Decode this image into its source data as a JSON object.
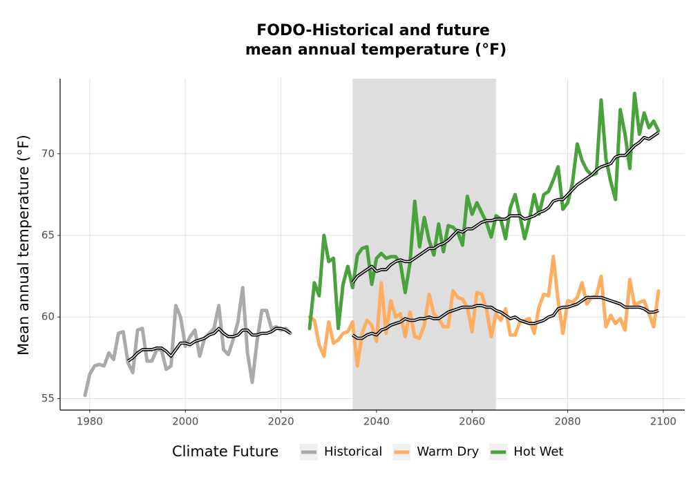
{
  "chart_data": {
    "type": "line",
    "title": [
      "FODO-Historical and future",
      "mean annual temperature (°F)"
    ],
    "y_label": "Mean annual temperature (°F)",
    "legend_title": "Climate Future",
    "legend_position": "bottom",
    "grid": true,
    "xlim": [
      1973.8,
      2104.5
    ],
    "ylim": [
      54.3,
      74.6
    ],
    "xticks": [
      1980,
      2000,
      2020,
      2040,
      2060,
      2080,
      2100
    ],
    "yticks": [
      55,
      60,
      65,
      70
    ],
    "highlight_range": [
      2035,
      2065
    ],
    "highlight_color": "#dcdcdc",
    "series": [
      {
        "name": "Historical",
        "color": "#aaaaaa",
        "x": [
          1979,
          1980,
          1981,
          1982,
          1983,
          1984,
          1985,
          1986,
          1987,
          1988,
          1989,
          1990,
          1991,
          1992,
          1993,
          1994,
          1995,
          1996,
          1997,
          1998,
          1999,
          2000,
          2001,
          2002,
          2003,
          2004,
          2005,
          2006,
          2007,
          2008,
          2009,
          2010,
          2011,
          2012,
          2013,
          2014,
          2015,
          2016,
          2017,
          2018,
          2019,
          2020,
          2021,
          2022
        ],
        "values": [
          55.2,
          56.5,
          57.0,
          57.1,
          57.0,
          57.8,
          57.4,
          59.0,
          59.1,
          57.2,
          56.6,
          59.2,
          59.3,
          57.3,
          57.3,
          58.0,
          58.0,
          56.8,
          57.0,
          60.7,
          60.0,
          58.2,
          58.8,
          59.2,
          57.6,
          58.7,
          59.0,
          59.3,
          60.7,
          58.0,
          57.7,
          58.6,
          59.7,
          61.8,
          57.8,
          56.0,
          58.5,
          60.4,
          60.4,
          59.3,
          59.4,
          59.2,
          59.3,
          59.0
        ]
      },
      {
        "name": "Warm Dry",
        "color": "#fdae61",
        "x": [
          2026,
          2027,
          2028,
          2029,
          2030,
          2031,
          2032,
          2033,
          2034,
          2035,
          2036,
          2037,
          2038,
          2039,
          2040,
          2041,
          2042,
          2043,
          2044,
          2045,
          2046,
          2047,
          2048,
          2049,
          2050,
          2051,
          2052,
          2053,
          2054,
          2055,
          2056,
          2057,
          2058,
          2059,
          2060,
          2061,
          2062,
          2063,
          2064,
          2065,
          2066,
          2067,
          2068,
          2069,
          2070,
          2071,
          2072,
          2073,
          2074,
          2075,
          2076,
          2077,
          2078,
          2079,
          2080,
          2081,
          2082,
          2083,
          2084,
          2085,
          2086,
          2087,
          2088,
          2089,
          2090,
          2091,
          2092,
          2093,
          2094,
          2095,
          2096,
          2097,
          2098,
          2099
        ],
        "values": [
          60.0,
          59.8,
          58.3,
          57.6,
          59.7,
          58.4,
          58.6,
          59.0,
          59.1,
          59.7,
          57.0,
          59.0,
          59.8,
          59.5,
          58.5,
          62.1,
          59.0,
          61.0,
          60.0,
          60.2,
          58.8,
          60.3,
          58.8,
          58.7,
          59.5,
          61.4,
          60.2,
          59.9,
          59.4,
          59.4,
          61.6,
          61.2,
          61.1,
          60.6,
          59.1,
          61.5,
          61.4,
          60.5,
          58.8,
          60.2,
          59.8,
          60.5,
          58.9,
          58.9,
          59.7,
          59.8,
          59.9,
          59.0,
          60.6,
          61.4,
          61.3,
          63.7,
          61.0,
          59.0,
          61.0,
          60.9,
          61.2,
          62.1,
          60.8,
          61.2,
          61.3,
          62.5,
          59.4,
          60.1,
          59.6,
          59.9,
          59.2,
          62.3,
          60.7,
          60.9,
          61.0,
          60.2,
          59.4,
          61.6
        ]
      },
      {
        "name": "Hot Wet",
        "color": "#4aa23e",
        "x": [
          2026,
          2027,
          2028,
          2029,
          2030,
          2031,
          2032,
          2033,
          2034,
          2035,
          2036,
          2037,
          2038,
          2039,
          2040,
          2041,
          2042,
          2043,
          2044,
          2045,
          2046,
          2047,
          2048,
          2049,
          2050,
          2051,
          2052,
          2053,
          2054,
          2055,
          2056,
          2057,
          2058,
          2059,
          2060,
          2061,
          2062,
          2063,
          2064,
          2065,
          2066,
          2067,
          2068,
          2069,
          2070,
          2071,
          2072,
          2073,
          2074,
          2075,
          2076,
          2077,
          2078,
          2079,
          2080,
          2081,
          2082,
          2083,
          2084,
          2085,
          2086,
          2087,
          2088,
          2089,
          2090,
          2091,
          2092,
          2093,
          2094,
          2095,
          2096,
          2097,
          2098,
          2099
        ],
        "values": [
          59.3,
          62.1,
          61.3,
          65.0,
          63.4,
          63.6,
          59.3,
          62.0,
          63.1,
          61.8,
          63.8,
          64.2,
          64.3,
          62.0,
          63.6,
          63.9,
          63.6,
          63.7,
          63.7,
          63.3,
          61.5,
          63.3,
          67.1,
          64.3,
          66.1,
          64.7,
          63.8,
          65.7,
          64.0,
          65.6,
          65.5,
          65.2,
          64.4,
          67.4,
          66.3,
          67.0,
          66.4,
          65.8,
          64.9,
          66.2,
          66.0,
          64.8,
          66.7,
          67.5,
          66.2,
          64.8,
          66.0,
          67.5,
          66.3,
          67.5,
          67.7,
          68.4,
          69.2,
          66.6,
          67.0,
          68.2,
          70.6,
          69.6,
          69.0,
          68.7,
          68.8,
          73.3,
          69.7,
          68.3,
          67.2,
          72.7,
          71.2,
          69.1,
          73.7,
          71.2,
          72.5,
          71.6,
          72.0,
          71.4
        ]
      }
    ],
    "smooth": [
      {
        "color": "#000000",
        "x": [
          1988,
          1989,
          1990,
          1991,
          1992,
          1993,
          1994,
          1995,
          1996,
          1997,
          1998,
          1999,
          2000,
          2001,
          2002,
          2003,
          2004,
          2005,
          2006,
          2007,
          2008,
          2009,
          2010,
          2011,
          2012,
          2013,
          2014,
          2015,
          2016,
          2017,
          2018,
          2019,
          2020,
          2021,
          2022
        ],
        "values": [
          57.3,
          57.5,
          57.8,
          58.0,
          58.0,
          58.0,
          58.1,
          58.1,
          57.9,
          57.6,
          58.0,
          58.4,
          58.4,
          58.3,
          58.5,
          58.6,
          58.7,
          58.9,
          59.0,
          59.3,
          59.0,
          58.8,
          58.8,
          58.9,
          59.2,
          59.2,
          58.9,
          58.9,
          59.0,
          59.0,
          59.1,
          59.3,
          59.3,
          59.2,
          59.0
        ]
      },
      {
        "color": "#000000",
        "x": [
          2035,
          2036,
          2037,
          2038,
          2039,
          2040,
          2041,
          2042,
          2043,
          2044,
          2045,
          2046,
          2047,
          2048,
          2049,
          2050,
          2051,
          2052,
          2053,
          2054,
          2055,
          2056,
          2057,
          2058,
          2059,
          2060,
          2061,
          2062,
          2063,
          2064,
          2065,
          2066,
          2067,
          2068,
          2069,
          2070,
          2071,
          2072,
          2073,
          2074,
          2075,
          2076,
          2077,
          2078,
          2079,
          2080,
          2081,
          2082,
          2083,
          2084,
          2085,
          2086,
          2087,
          2088,
          2089,
          2090,
          2091,
          2092,
          2093,
          2094,
          2095,
          2096,
          2097,
          2098,
          2099
        ],
        "values": [
          58.9,
          58.7,
          58.7,
          58.9,
          59.0,
          58.9,
          59.2,
          59.3,
          59.5,
          59.6,
          59.7,
          59.9,
          59.8,
          59.8,
          59.9,
          59.9,
          60.0,
          59.9,
          59.9,
          60.1,
          60.3,
          60.4,
          60.5,
          60.6,
          60.6,
          60.6,
          60.7,
          60.7,
          60.6,
          60.6,
          60.4,
          60.3,
          60.1,
          59.9,
          60.0,
          59.8,
          59.7,
          59.6,
          59.6,
          59.7,
          59.8,
          60.0,
          60.1,
          60.5,
          60.6,
          60.6,
          60.7,
          60.8,
          61.0,
          61.2,
          61.2,
          61.2,
          61.2,
          61.1,
          61.0,
          60.9,
          60.8,
          60.6,
          60.6,
          60.6,
          60.6,
          60.5,
          60.3,
          60.3,
          60.4
        ]
      },
      {
        "color": "#000000",
        "x": [
          2035,
          2036,
          2037,
          2038,
          2039,
          2040,
          2041,
          2042,
          2043,
          2044,
          2045,
          2046,
          2047,
          2048,
          2049,
          2050,
          2051,
          2052,
          2053,
          2054,
          2055,
          2056,
          2057,
          2058,
          2059,
          2060,
          2061,
          2062,
          2063,
          2064,
          2065,
          2066,
          2067,
          2068,
          2069,
          2070,
          2071,
          2072,
          2073,
          2074,
          2075,
          2076,
          2077,
          2078,
          2079,
          2080,
          2081,
          2082,
          2083,
          2084,
          2085,
          2086,
          2087,
          2088,
          2089,
          2090,
          2091,
          2092,
          2093,
          2094,
          2095,
          2096,
          2097,
          2098,
          2099
        ],
        "values": [
          62.1,
          62.5,
          62.7,
          62.9,
          63.1,
          62.8,
          62.9,
          62.9,
          63.2,
          63.4,
          63.5,
          63.4,
          63.4,
          63.6,
          63.8,
          64.0,
          64.2,
          64.2,
          64.4,
          64.5,
          64.7,
          65.0,
          65.3,
          65.2,
          65.4,
          65.4,
          65.6,
          65.8,
          65.9,
          65.9,
          66.0,
          66.0,
          66.0,
          66.2,
          66.2,
          66.2,
          66.0,
          66.1,
          66.2,
          66.4,
          66.5,
          66.7,
          67.1,
          67.2,
          67.2,
          67.5,
          67.8,
          68.1,
          68.3,
          68.5,
          68.7,
          69.0,
          69.2,
          69.3,
          69.4,
          69.8,
          69.9,
          69.9,
          70.2,
          70.5,
          70.7,
          71.0,
          70.9,
          71.1,
          71.3
        ]
      }
    ]
  }
}
